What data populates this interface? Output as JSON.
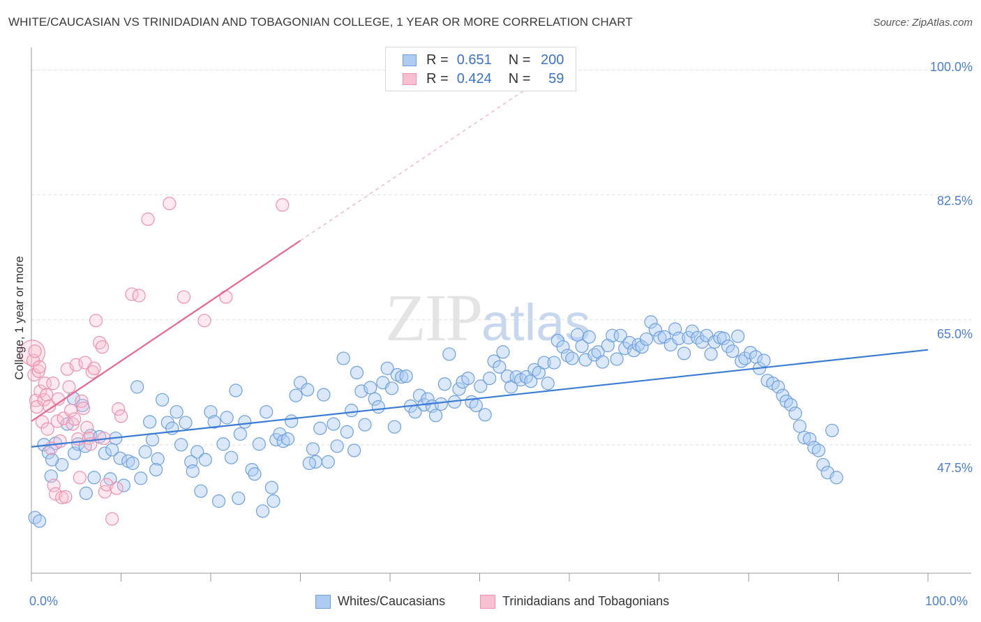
{
  "title": "WHITE/CAUCASIAN VS TRINIDADIAN AND TOBAGONIAN COLLEGE, 1 YEAR OR MORE CORRELATION CHART",
  "source": "Source: ZipAtlas.com",
  "watermark": {
    "zip": "ZIP",
    "atlas": "atlas"
  },
  "legend": {
    "r_label": "R =",
    "n_label": "N =",
    "rows": [
      {
        "r": "0.651",
        "n": "200",
        "fill": "#aecbf2",
        "stroke": "#6d9fe0"
      },
      {
        "r": "0.424",
        "n": "59",
        "fill": "#f8c0d0",
        "stroke": "#ef8fab"
      }
    ]
  },
  "bottom_legend": [
    "Whites/Caucasians",
    "Trinidadians and Tobagonians"
  ],
  "colors": {
    "blue": "#3a7bd5",
    "pink": "#e8668f",
    "grid": "#dddddd",
    "tick_text": "#4a7fd0"
  },
  "chart_data": {
    "type": "scatter",
    "title": "WHITE/CAUCASIAN VS TRINIDADIAN AND TOBAGONIAN COLLEGE, 1 YEAR OR MORE CORRELATION CHART",
    "ylabel": "College, 1 year or more",
    "xlabel": "",
    "xlim": [
      0,
      100
    ],
    "ylim": [
      29.5,
      102
    ],
    "x_tick_labels": [
      "0.0%",
      "100.0%"
    ],
    "y_ticks": [
      47.5,
      65.0,
      82.5,
      100.0
    ],
    "y_tick_labels": [
      "47.5%",
      "65.0%",
      "82.5%",
      "100.0%"
    ],
    "series": [
      {
        "name": "Whites/Caucasians",
        "color": "#3a7bd5",
        "trend": {
          "x": [
            0,
            100
          ],
          "y": [
            47.2,
            60.8
          ],
          "dashed_x": []
        },
        "points": [
          [
            0.4,
            37.3
          ],
          [
            0.9,
            36.8
          ],
          [
            1.4,
            47.5
          ],
          [
            1.9,
            46.4
          ],
          [
            2.2,
            43.1
          ],
          [
            2.7,
            47.7
          ],
          [
            3.4,
            44.7
          ],
          [
            4.0,
            50.4
          ],
          [
            4.7,
            54.0
          ],
          [
            4.8,
            46.3
          ],
          [
            5.2,
            47.6
          ],
          [
            5.7,
            53.0
          ],
          [
            6.0,
            47.3
          ],
          [
            6.6,
            48.8
          ],
          [
            7.0,
            42.9
          ],
          [
            7.6,
            48.6
          ],
          [
            8.2,
            46.3
          ],
          [
            8.8,
            42.7
          ],
          [
            9.4,
            48.4
          ],
          [
            9.9,
            45.6
          ],
          [
            10.3,
            41.8
          ],
          [
            10.8,
            45.2
          ],
          [
            11.3,
            44.9
          ],
          [
            11.8,
            55.6
          ],
          [
            12.2,
            42.8
          ],
          [
            12.7,
            46.5
          ],
          [
            13.2,
            50.7
          ],
          [
            13.5,
            48.2
          ],
          [
            14.1,
            45.5
          ],
          [
            14.6,
            53.8
          ],
          [
            15.2,
            50.6
          ],
          [
            15.7,
            49.8
          ],
          [
            16.2,
            52.1
          ],
          [
            16.7,
            47.5
          ],
          [
            17.2,
            50.6
          ],
          [
            17.8,
            45.1
          ],
          [
            18.5,
            46.5
          ],
          [
            18.9,
            41.0
          ],
          [
            19.4,
            45.4
          ],
          [
            20.0,
            52.1
          ],
          [
            20.4,
            50.7
          ],
          [
            20.9,
            39.6
          ],
          [
            21.4,
            47.6
          ],
          [
            21.8,
            51.3
          ],
          [
            22.3,
            45.7
          ],
          [
            22.8,
            55.1
          ],
          [
            23.3,
            49.0
          ],
          [
            23.8,
            50.7
          ],
          [
            24.6,
            44.0
          ],
          [
            24.9,
            43.4
          ],
          [
            25.4,
            47.6
          ],
          [
            25.8,
            38.2
          ],
          [
            26.2,
            52.1
          ],
          [
            26.8,
            41.5
          ],
          [
            27.3,
            48.2
          ],
          [
            27.7,
            49.0
          ],
          [
            28.1,
            48.0
          ],
          [
            28.6,
            48.3
          ],
          [
            29.0,
            50.8
          ],
          [
            29.5,
            54.4
          ],
          [
            30.0,
            56.2
          ],
          [
            30.8,
            55.2
          ],
          [
            31.4,
            46.9
          ],
          [
            31.7,
            45.1
          ],
          [
            32.2,
            49.8
          ],
          [
            32.6,
            54.5
          ],
          [
            33.1,
            45.1
          ],
          [
            33.7,
            50.4
          ],
          [
            34.1,
            47.3
          ],
          [
            34.8,
            59.6
          ],
          [
            35.2,
            49.3
          ],
          [
            35.7,
            52.3
          ],
          [
            36.3,
            57.6
          ],
          [
            36.8,
            55.0
          ],
          [
            37.2,
            50.3
          ],
          [
            37.8,
            55.5
          ],
          [
            38.3,
            53.9
          ],
          [
            38.7,
            52.8
          ],
          [
            39.2,
            56.2
          ],
          [
            39.7,
            58.2
          ],
          [
            40.2,
            55.4
          ],
          [
            40.8,
            57.3
          ],
          [
            41.3,
            57.0
          ],
          [
            41.8,
            57.1
          ],
          [
            42.3,
            52.9
          ],
          [
            42.8,
            52.1
          ],
          [
            43.3,
            54.4
          ],
          [
            43.8,
            53.1
          ],
          [
            44.2,
            53.9
          ],
          [
            44.7,
            52.9
          ],
          [
            45.1,
            51.6
          ],
          [
            45.7,
            53.2
          ],
          [
            46.1,
            56.0
          ],
          [
            46.6,
            60.2
          ],
          [
            47.2,
            53.5
          ],
          [
            47.7,
            55.3
          ],
          [
            48.1,
            56.3
          ],
          [
            48.7,
            56.8
          ],
          [
            49.1,
            53.5
          ],
          [
            49.6,
            53.0
          ],
          [
            50.1,
            55.7
          ],
          [
            50.6,
            51.7
          ],
          [
            51.1,
            56.8
          ],
          [
            51.6,
            59.2
          ],
          [
            52.2,
            58.4
          ],
          [
            52.6,
            60.5
          ],
          [
            53.1,
            57.1
          ],
          [
            53.5,
            55.6
          ],
          [
            54.1,
            57.0
          ],
          [
            54.6,
            56.6
          ],
          [
            55.2,
            57.0
          ],
          [
            55.7,
            56.4
          ],
          [
            56.1,
            58.0
          ],
          [
            56.6,
            57.6
          ],
          [
            57.2,
            59.0
          ],
          [
            57.6,
            56.1
          ],
          [
            58.3,
            59.0
          ],
          [
            58.7,
            62.1
          ],
          [
            59.3,
            61.2
          ],
          [
            59.8,
            60.0
          ],
          [
            60.3,
            59.6
          ],
          [
            60.9,
            62.9
          ],
          [
            61.4,
            61.3
          ],
          [
            61.8,
            59.4
          ],
          [
            62.2,
            62.6
          ],
          [
            62.8,
            60.1
          ],
          [
            63.2,
            60.5
          ],
          [
            63.7,
            59.1
          ],
          [
            64.3,
            61.4
          ],
          [
            64.8,
            62.8
          ],
          [
            65.3,
            59.5
          ],
          [
            65.7,
            62.8
          ],
          [
            66.2,
            61.0
          ],
          [
            66.7,
            61.8
          ],
          [
            67.2,
            60.7
          ],
          [
            67.7,
            61.5
          ],
          [
            68.1,
            61.2
          ],
          [
            68.6,
            62.3
          ],
          [
            69.1,
            64.7
          ],
          [
            69.6,
            63.6
          ],
          [
            70.1,
            62.5
          ],
          [
            70.6,
            62.6
          ],
          [
            71.3,
            61.5
          ],
          [
            71.8,
            63.7
          ],
          [
            72.2,
            62.4
          ],
          [
            72.8,
            60.3
          ],
          [
            73.3,
            62.5
          ],
          [
            73.7,
            63.4
          ],
          [
            74.3,
            62.5
          ],
          [
            74.8,
            61.9
          ],
          [
            75.3,
            62.8
          ],
          [
            75.8,
            60.2
          ],
          [
            76.2,
            61.9
          ],
          [
            76.8,
            62.5
          ],
          [
            77.2,
            62.4
          ],
          [
            77.7,
            61.3
          ],
          [
            78.2,
            60.6
          ],
          [
            78.8,
            62.7
          ],
          [
            79.2,
            59.2
          ],
          [
            79.6,
            59.6
          ],
          [
            80.2,
            60.4
          ],
          [
            80.8,
            59.8
          ],
          [
            81.2,
            58.2
          ],
          [
            81.7,
            59.3
          ],
          [
            82.1,
            56.5
          ],
          [
            82.7,
            56.1
          ],
          [
            83.3,
            55.6
          ],
          [
            83.8,
            54.4
          ],
          [
            84.2,
            53.6
          ],
          [
            84.7,
            53.1
          ],
          [
            85.2,
            51.9
          ],
          [
            85.7,
            50.1
          ],
          [
            86.2,
            48.5
          ],
          [
            86.8,
            48.3
          ],
          [
            87.3,
            47.1
          ],
          [
            87.8,
            46.7
          ],
          [
            88.3,
            44.7
          ],
          [
            88.8,
            43.6
          ],
          [
            89.3,
            49.5
          ],
          [
            89.8,
            42.9
          ],
          [
            2.3,
            45.4
          ],
          [
            6.1,
            40.7
          ],
          [
            9.0,
            46.8
          ],
          [
            13.9,
            44.0
          ],
          [
            18.0,
            43.8
          ],
          [
            23.1,
            40.0
          ],
          [
            27.0,
            39.6
          ],
          [
            31.0,
            44.9
          ],
          [
            36.0,
            46.7
          ],
          [
            40.5,
            50.0
          ]
        ]
      },
      {
        "name": "Trinidadians and Tobagonians",
        "color": "#e8668f",
        "trend": {
          "x": [
            0,
            30
          ],
          "y": [
            50.8,
            76.1
          ],
          "dashed_x": [
            30,
            55
          ]
        },
        "points": [
          [
            0.1,
            60.4
          ],
          [
            0.2,
            59.3
          ],
          [
            0.3,
            57.3
          ],
          [
            0.4,
            60.6
          ],
          [
            0.5,
            53.7
          ],
          [
            0.6,
            52.8
          ],
          [
            0.8,
            57.8
          ],
          [
            0.9,
            58.4
          ],
          [
            1.0,
            55.0
          ],
          [
            1.2,
            50.7
          ],
          [
            1.4,
            53.8
          ],
          [
            1.5,
            56.1
          ],
          [
            1.7,
            54.5
          ],
          [
            1.8,
            49.7
          ],
          [
            2.0,
            52.9
          ],
          [
            2.2,
            47.0
          ],
          [
            2.4,
            56.1
          ],
          [
            2.5,
            41.8
          ],
          [
            2.7,
            40.6
          ],
          [
            2.9,
            50.8
          ],
          [
            3.0,
            53.9
          ],
          [
            3.2,
            48.0
          ],
          [
            3.4,
            40.1
          ],
          [
            3.6,
            51.2
          ],
          [
            3.8,
            40.2
          ],
          [
            4.0,
            58.1
          ],
          [
            4.2,
            55.6
          ],
          [
            4.4,
            52.3
          ],
          [
            4.6,
            50.4
          ],
          [
            4.8,
            51.1
          ],
          [
            5.0,
            58.7
          ],
          [
            5.2,
            48.3
          ],
          [
            5.4,
            42.9
          ],
          [
            5.6,
            53.6
          ],
          [
            5.8,
            52.6
          ],
          [
            6.0,
            59.0
          ],
          [
            6.2,
            49.9
          ],
          [
            6.4,
            48.4
          ],
          [
            6.6,
            47.6
          ],
          [
            6.8,
            57.7
          ],
          [
            7.0,
            58.2
          ],
          [
            7.2,
            64.9
          ],
          [
            7.6,
            61.8
          ],
          [
            7.9,
            61.2
          ],
          [
            8.1,
            48.4
          ],
          [
            8.2,
            40.9
          ],
          [
            8.4,
            41.9
          ],
          [
            9.5,
            41.4
          ],
          [
            9.7,
            52.5
          ],
          [
            10.0,
            51.5
          ],
          [
            11.2,
            68.6
          ],
          [
            12.0,
            68.4
          ],
          [
            13.0,
            79.1
          ],
          [
            15.4,
            81.3
          ],
          [
            17.0,
            68.2
          ],
          [
            19.3,
            64.9
          ],
          [
            21.7,
            68.2
          ],
          [
            28.0,
            81.1
          ],
          [
            9.0,
            37.1
          ]
        ]
      }
    ]
  }
}
